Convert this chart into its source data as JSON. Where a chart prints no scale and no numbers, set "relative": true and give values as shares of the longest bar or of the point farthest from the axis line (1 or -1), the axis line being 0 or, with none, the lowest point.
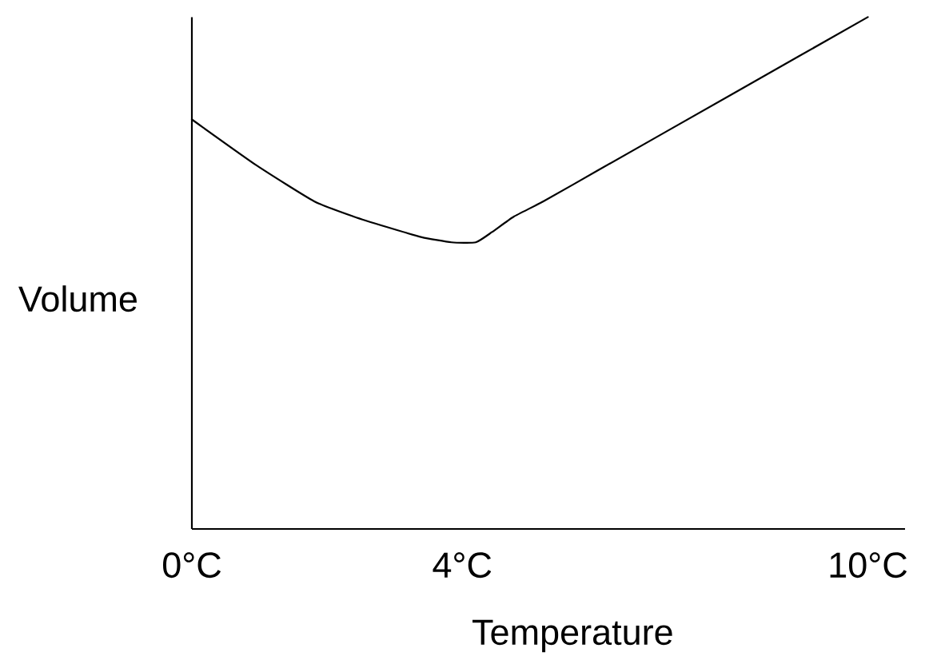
{
  "chart_data": {
    "type": "line",
    "xlabel": "Temperature",
    "ylabel": "Volume",
    "relative": true,
    "x": [
      0,
      0.96,
      1.81,
      2.4,
      2.88,
      3.4,
      3.84,
      4.2,
      4.44,
      4.76,
      5.2,
      6,
      8,
      10
    ],
    "series": [
      {
        "color": "#000000",
        "values": [
          0.8,
          0.71,
          0.64,
          0.61,
          0.59,
          0.57,
          0.56,
          0.56,
          0.58,
          0.61,
          0.64,
          0.7,
          0.85,
          1
        ]
      }
    ],
    "xlim": [
      0,
      10.55
    ],
    "xticks": [
      {
        "value": 0,
        "label": "0°C"
      },
      {
        "value": 4,
        "label": "4°C"
      },
      {
        "value": 10,
        "label": "10°C"
      }
    ],
    "marker": "none",
    "line_style": "solid"
  }
}
